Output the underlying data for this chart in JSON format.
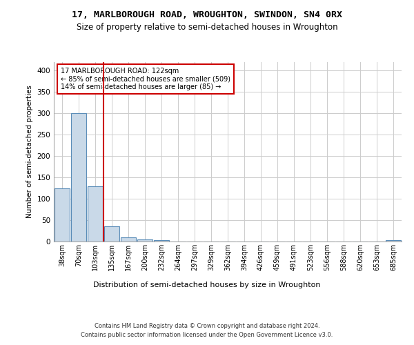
{
  "title_line1": "17, MARLBOROUGH ROAD, WROUGHTON, SWINDON, SN4 0RX",
  "title_line2": "Size of property relative to semi-detached houses in Wroughton",
  "xlabel": "Distribution of semi-detached houses by size in Wroughton",
  "ylabel": "Number of semi-detached properties",
  "footer_line1": "Contains HM Land Registry data © Crown copyright and database right 2024.",
  "footer_line2": "Contains public sector information licensed under the Open Government Licence v3.0.",
  "bar_labels": [
    "38sqm",
    "70sqm",
    "103sqm",
    "135sqm",
    "167sqm",
    "200sqm",
    "232sqm",
    "264sqm",
    "297sqm",
    "329sqm",
    "362sqm",
    "394sqm",
    "426sqm",
    "459sqm",
    "491sqm",
    "523sqm",
    "556sqm",
    "588sqm",
    "620sqm",
    "653sqm",
    "685sqm"
  ],
  "bar_values": [
    125,
    300,
    130,
    35,
    9,
    5,
    3,
    0,
    0,
    0,
    0,
    0,
    0,
    0,
    0,
    0,
    0,
    0,
    0,
    0,
    3
  ],
  "bar_color": "#c9d9e8",
  "bar_edge_color": "#5b8db8",
  "property_line_x": 2.5,
  "annotation_text_line1": "17 MARLBOROUGH ROAD: 122sqm",
  "annotation_text_line2": "← 85% of semi-detached houses are smaller (509)",
  "annotation_text_line3": "14% of semi-detached houses are larger (85) →",
  "annotation_box_color": "#ffffff",
  "annotation_box_edge": "#cc0000",
  "vline_color": "#cc0000",
  "ylim": [
    0,
    420
  ],
  "yticks": [
    0,
    50,
    100,
    150,
    200,
    250,
    300,
    350,
    400
  ],
  "grid_color": "#cccccc",
  "bg_color": "#ffffff",
  "title_fontsize": 9.5,
  "subtitle_fontsize": 8.5
}
